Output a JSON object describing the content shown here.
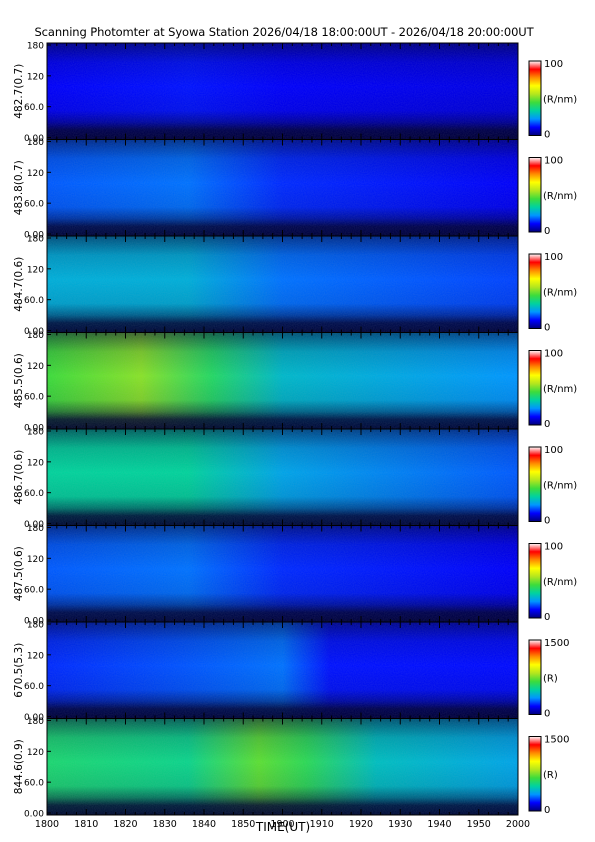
{
  "title": "Scanning Photomter at Syowa Station 2026/04/18 18:00:00UT - 2026/04/18 20:00:00UT",
  "colors": {
    "colormap": [
      "#00007a",
      "#0000ff",
      "#0096ff",
      "#00d2a0",
      "#3cdc3c",
      "#b4e61e",
      "#ffff00",
      "#ff8c00",
      "#ff0000",
      "#ffffff"
    ]
  },
  "chart_data": {
    "type": "heatmap",
    "xlabel": "TIME(UT)",
    "xlim": [
      "1800",
      "2000"
    ],
    "x_tick_labels": [
      "1800",
      "1810",
      "1820",
      "1830",
      "1840",
      "1850",
      "1900",
      "1910",
      "1920",
      "1930",
      "1940",
      "1950",
      "2000"
    ],
    "ylim": [
      0,
      180
    ],
    "y_tick_labels": [
      "0.00",
      "60.0",
      "120",
      "180"
    ],
    "panels": [
      {
        "label": "482.7(0.7)",
        "unit": "(R/nm)",
        "cbar_min": "0",
        "cbar_max": "100",
        "cbar_range": [
          0,
          100
        ],
        "profile": [
          {
            "t": 0,
            "v": 12
          },
          {
            "t": 0.3,
            "v": 14
          },
          {
            "t": 0.5,
            "v": 12
          },
          {
            "t": 1,
            "v": 10
          }
        ]
      },
      {
        "label": "483.8(0.7)",
        "unit": "(R/nm)",
        "cbar_min": "0",
        "cbar_max": "100",
        "cbar_range": [
          0,
          100
        ],
        "profile": [
          {
            "t": 0,
            "v": 20
          },
          {
            "t": 0.3,
            "v": 22
          },
          {
            "t": 0.5,
            "v": 16
          },
          {
            "t": 1,
            "v": 12
          }
        ]
      },
      {
        "label": "484.7(0.6)",
        "unit": "(R/nm)",
        "cbar_min": "0",
        "cbar_max": "100",
        "cbar_range": [
          0,
          100
        ],
        "profile": [
          {
            "t": 0,
            "v": 30
          },
          {
            "t": 0.3,
            "v": 30
          },
          {
            "t": 0.5,
            "v": 22
          },
          {
            "t": 1,
            "v": 18
          }
        ]
      },
      {
        "label": "485.5(0.6)",
        "unit": "(R/nm)",
        "cbar_min": "0",
        "cbar_max": "100",
        "cbar_range": [
          0,
          100
        ],
        "profile": [
          {
            "t": 0,
            "v": 50
          },
          {
            "t": 0.2,
            "v": 58
          },
          {
            "t": 0.35,
            "v": 45
          },
          {
            "t": 0.5,
            "v": 32
          },
          {
            "t": 1,
            "v": 25
          }
        ]
      },
      {
        "label": "486.7(0.6)",
        "unit": "(R/nm)",
        "cbar_min": "0",
        "cbar_max": "100",
        "cbar_range": [
          0,
          100
        ],
        "profile": [
          {
            "t": 0,
            "v": 38
          },
          {
            "t": 0.3,
            "v": 38
          },
          {
            "t": 0.5,
            "v": 28
          },
          {
            "t": 1,
            "v": 20
          }
        ]
      },
      {
        "label": "487.5(0.6)",
        "unit": "(R/nm)",
        "cbar_min": "0",
        "cbar_max": "100",
        "cbar_range": [
          0,
          100
        ],
        "profile": [
          {
            "t": 0,
            "v": 20
          },
          {
            "t": 0.3,
            "v": 22
          },
          {
            "t": 0.5,
            "v": 16
          },
          {
            "t": 1,
            "v": 12
          }
        ]
      },
      {
        "label": "670.5(5.3)",
        "unit": "(R)",
        "cbar_min": "0",
        "cbar_max": "1500",
        "cbar_range": [
          0,
          1500
        ],
        "profile": [
          {
            "t": 0,
            "v": 240
          },
          {
            "t": 0.5,
            "v": 330
          },
          {
            "t": 0.6,
            "v": 210
          },
          {
            "t": 1,
            "v": 200
          }
        ]
      },
      {
        "label": "844.6(0.9)",
        "unit": "(R)",
        "cbar_min": "0",
        "cbar_max": "1500",
        "cbar_range": [
          0,
          1500
        ],
        "profile": [
          {
            "t": 0,
            "v": 650
          },
          {
            "t": 0.3,
            "v": 600
          },
          {
            "t": 0.45,
            "v": 800
          },
          {
            "t": 0.55,
            "v": 700
          },
          {
            "t": 0.7,
            "v": 500
          },
          {
            "t": 1,
            "v": 420
          }
        ]
      }
    ]
  }
}
